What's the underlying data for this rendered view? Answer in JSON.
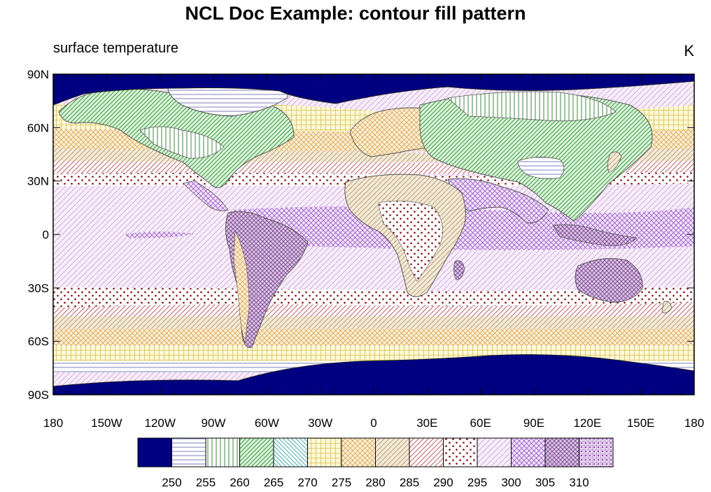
{
  "title": "NCL Doc Example:  contour fill pattern",
  "left_string": "surface temperature",
  "right_string": "K",
  "map": {
    "lat_ticks": [
      "90N",
      "60N",
      "30N",
      "0",
      "30S",
      "60S",
      "90S"
    ],
    "lon_ticks": [
      "180",
      "150W",
      "120W",
      "90W",
      "60W",
      "30W",
      "0",
      "30E",
      "60E",
      "90E",
      "120E",
      "150E",
      "180"
    ]
  },
  "colors": {
    "cold": "#000080",
    "b255": "#7f7fbf",
    "b260": "#3c8c3c",
    "b265": "#2f9f2f",
    "b270": "#3fb6b6",
    "b275": "#d8c24a",
    "b280": "#e0a040",
    "b285": "#b58e5a",
    "b290": "#d23c3c",
    "b295": "#8b0000",
    "b300": "#b070d0",
    "b305": "#9a50d0",
    "b310": "#7b3a9a"
  },
  "legend": {
    "labels": [
      "250",
      "255",
      "260",
      "265",
      "270",
      "275",
      "280",
      "285",
      "290",
      "295",
      "300",
      "305",
      "310"
    ]
  }
}
